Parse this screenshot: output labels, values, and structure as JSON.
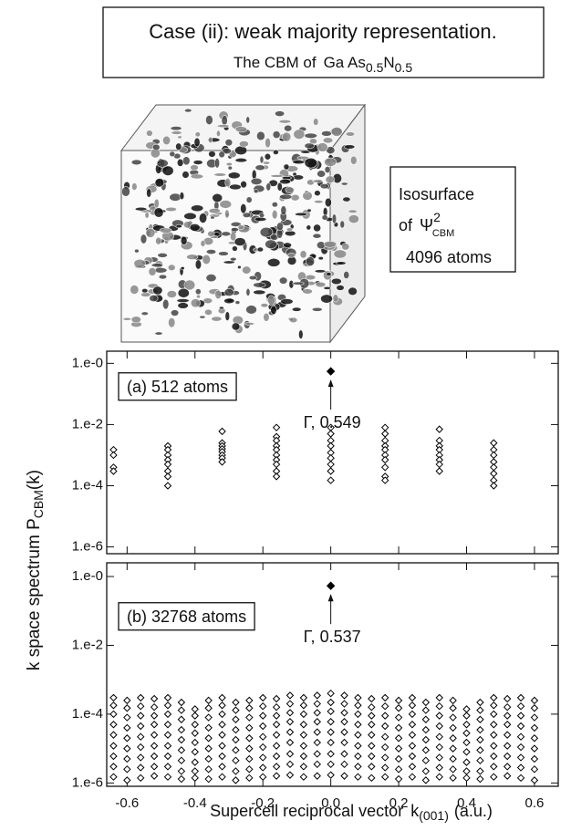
{
  "header": {
    "title": "Case (ii): weak majority representation.",
    "subtitle": [
      "The CBM of",
      "Ga As",
      "0.5",
      "N",
      "0.5"
    ]
  },
  "inset": {
    "line1": "Isosurface",
    "line2": [
      "of",
      "Ψ",
      "2",
      "CBM"
    ],
    "line3": "4096 atoms"
  },
  "axis_labels": {
    "y": [
      "k space spectrum P",
      "CBM",
      "(k)"
    ],
    "x": [
      "Supercell reciprocal vector",
      "k",
      "(001)",
      "(a.u.)"
    ]
  },
  "chart_data": [
    {
      "type": "scatter",
      "label": "(a) 512 atoms",
      "yscale": "log",
      "marker": "open-diamond",
      "color": "#000000",
      "xlim": [
        -0.66,
        0.67
      ],
      "xticks": [
        -0.6,
        -0.4,
        -0.2,
        0,
        0.2,
        0.4,
        0.6
      ],
      "ylim": [
        6e-07,
        2.5
      ],
      "yticks": [
        {
          "value": 1,
          "label": "1.e-0"
        },
        {
          "value": 0.01,
          "label": "1.e-2"
        },
        {
          "value": 0.0001,
          "label": "1.e-4"
        },
        {
          "value": 1e-06,
          "label": "1.e-6"
        }
      ],
      "x": [
        -0.64,
        -0.48,
        -0.32,
        -0.16,
        0,
        0.16,
        0.32,
        0.48
      ],
      "values": [
        [
          0.0015,
          0.001,
          0.0004,
          0.0003
        ],
        [
          0.002,
          0.0015,
          0.001,
          0.0007,
          0.0005,
          0.0003,
          0.0002,
          0.0001
        ],
        [
          0.006,
          0.0025,
          0.002,
          0.0016,
          0.0013,
          0.001,
          0.0008,
          0.0006
        ],
        [
          0.008,
          0.004,
          0.003,
          0.002,
          0.0015,
          0.001,
          0.0007,
          0.0005,
          0.0003,
          0.0002
        ],
        [
          0.008,
          0.005,
          0.003,
          0.002,
          0.0012,
          0.0008,
          0.0005,
          0.0003,
          0.00015
        ],
        [
          0.008,
          0.005,
          0.003,
          0.002,
          0.0015,
          0.001,
          0.0007,
          0.0004,
          0.0002,
          0.00015
        ],
        [
          0.007,
          0.003,
          0.002,
          0.0015,
          0.001,
          0.0007,
          0.0005,
          0.0003
        ],
        [
          0.0025,
          0.0015,
          0.001,
          0.0006,
          0.0004,
          0.00025,
          0.00015,
          0.0001
        ]
      ],
      "gamma": {
        "x": 0,
        "value": 0.549,
        "label": "Γ, 0.549"
      }
    },
    {
      "type": "scatter",
      "label": "(b) 32768 atoms",
      "yscale": "log",
      "marker": "open-diamond",
      "color": "#000000",
      "xlim": [
        -0.66,
        0.67
      ],
      "xticks": [
        -0.6,
        -0.4,
        -0.2,
        {
          "value": 0,
          "label": "0.0"
        },
        0.2,
        0.4,
        0.6
      ],
      "ylim": [
        8e-07,
        2.5
      ],
      "yticks": [
        {
          "value": 1,
          "label": "1.e-0"
        },
        {
          "value": 0.01,
          "label": "1.e-2"
        },
        {
          "value": 0.0001,
          "label": "1.e-4"
        },
        {
          "value": 1e-06,
          "label": "1.e-6"
        }
      ],
      "x": [
        -0.64,
        -0.6,
        -0.56,
        -0.52,
        -0.48,
        -0.44,
        -0.4,
        -0.36,
        -0.32,
        -0.28,
        -0.24,
        -0.2,
        -0.16,
        -0.12,
        -0.08,
        -0.04,
        0,
        0.04,
        0.08,
        0.12,
        0.16,
        0.2,
        0.24,
        0.28,
        0.32,
        0.36,
        0.4,
        0.44,
        0.48,
        0.52,
        0.56,
        0.6
      ],
      "values": [
        [
          0.0003,
          0.00018,
          0.0001,
          5e-05,
          2.5e-05,
          1.2e-05,
          6e-06,
          3e-06,
          1.5e-06
        ],
        [
          0.00025,
          0.00015,
          8e-05,
          4e-05,
          2e-05,
          1e-05,
          5e-06,
          2.5e-06,
          1.2e-06
        ],
        [
          0.0003,
          0.00017,
          9e-05,
          4.5e-05,
          2.2e-05,
          1.1e-05,
          5.5e-06,
          2.8e-06,
          1.4e-06
        ],
        [
          0.00028,
          0.00016,
          9e-05,
          5e-05,
          2.5e-05,
          1.2e-05,
          6e-06,
          3e-06,
          1.6e-06
        ],
        [
          0.0003,
          0.00018,
          0.0001,
          5e-05,
          2.5e-05,
          1.2e-05,
          6e-06,
          3e-06,
          1.5e-06
        ],
        [
          0.00022,
          0.00013,
          7e-05,
          3.5e-05,
          1.8e-05,
          9e-06,
          4.5e-06,
          2.2e-06,
          1.3e-06
        ],
        [
          0.00014,
          9e-05,
          5e-05,
          2.8e-05,
          1.5e-05,
          8e-06,
          4e-06,
          2.2e-06,
          1.4e-06
        ],
        [
          0.00025,
          0.00015,
          8e-05,
          4e-05,
          2e-05,
          1e-05,
          5e-06,
          2.5e-06,
          1.3e-06
        ],
        [
          0.0003,
          0.00018,
          0.0001,
          5e-05,
          2.5e-05,
          1.2e-05,
          6e-06,
          3e-06,
          1.5e-06
        ],
        [
          0.00022,
          0.00013,
          7e-05,
          3.5e-05,
          1.8e-05,
          9e-06,
          4.5e-06,
          2.2e-06,
          1.2e-06
        ],
        [
          0.00025,
          0.00015,
          8e-05,
          4e-05,
          2e-05,
          1e-05,
          5e-06,
          2.5e-06,
          1.4e-06
        ],
        [
          0.0003,
          0.00017,
          9e-05,
          4.5e-05,
          2.2e-05,
          1.1e-05,
          5.5e-06,
          2.8e-06,
          1.5e-06
        ],
        [
          0.00028,
          0.00016,
          9e-05,
          5e-05,
          2.5e-05,
          1.2e-05,
          6e-06,
          3e-06,
          1.6e-06
        ],
        [
          0.00035,
          0.0002,
          0.00011,
          6e-05,
          3e-05,
          1.5e-05,
          7e-06,
          3.5e-06,
          1.7e-06
        ],
        [
          0.0003,
          0.00018,
          0.0001,
          5e-05,
          2.5e-05,
          1.2e-05,
          6e-06,
          3e-06,
          1.5e-06
        ],
        [
          0.00035,
          0.0002,
          0.00011,
          6e-05,
          3e-05,
          1.5e-05,
          7e-06,
          3.5e-06,
          1.6e-06
        ],
        [
          0.0004,
          0.00022,
          0.00012,
          6e-05,
          3e-05,
          1.5e-05,
          7e-06,
          3.5e-06,
          1.7e-06
        ],
        [
          0.00035,
          0.0002,
          0.00011,
          6e-05,
          3e-05,
          1.5e-05,
          7e-06,
          3.5e-06,
          1.6e-06
        ],
        [
          0.0003,
          0.00018,
          0.0001,
          5e-05,
          2.5e-05,
          1.2e-05,
          6e-06,
          3e-06,
          1.5e-06
        ],
        [
          0.00028,
          0.00016,
          9e-05,
          5e-05,
          2.5e-05,
          1.2e-05,
          6e-06,
          3e-06,
          1.4e-06
        ],
        [
          0.0003,
          0.00017,
          9e-05,
          4.5e-05,
          2.2e-05,
          1.1e-05,
          5.5e-06,
          2.8e-06,
          1.5e-06
        ],
        [
          0.00025,
          0.00015,
          8e-05,
          4e-05,
          2e-05,
          1e-05,
          5e-06,
          2.5e-06,
          1.3e-06
        ],
        [
          0.0003,
          0.00018,
          0.0001,
          5e-05,
          2.5e-05,
          1.2e-05,
          6e-06,
          3e-06,
          1.5e-06
        ],
        [
          0.00022,
          0.00013,
          7e-05,
          3.5e-05,
          1.8e-05,
          9e-06,
          4.5e-06,
          2.2e-06,
          1.2e-06
        ],
        [
          0.0003,
          0.00017,
          9e-05,
          4.5e-05,
          2.2e-05,
          1.1e-05,
          5.5e-06,
          2.8e-06,
          1.5e-06
        ],
        [
          0.00025,
          0.00015,
          8e-05,
          4e-05,
          2e-05,
          1e-05,
          5e-06,
          2.5e-06,
          1.4e-06
        ],
        [
          0.00014,
          9e-05,
          5e-05,
          2.8e-05,
          1.5e-05,
          8e-06,
          4e-06,
          2.2e-06,
          1.4e-06
        ],
        [
          0.00022,
          0.00013,
          7e-05,
          3.5e-05,
          1.8e-05,
          9e-06,
          4.5e-06,
          2.2e-06,
          1.3e-06
        ],
        [
          0.0003,
          0.00018,
          0.0001,
          5e-05,
          2.5e-05,
          1.2e-05,
          6e-06,
          3e-06,
          1.5e-06
        ],
        [
          0.00028,
          0.00016,
          9e-05,
          5e-05,
          2.5e-05,
          1.2e-05,
          6e-06,
          3e-06,
          1.6e-06
        ],
        [
          0.0003,
          0.00017,
          9e-05,
          4.5e-05,
          2.2e-05,
          1.1e-05,
          5.5e-06,
          2.8e-06,
          1.4e-06
        ],
        [
          0.00025,
          0.00015,
          8e-05,
          4e-05,
          2e-05,
          1e-05,
          5e-06,
          2.5e-06,
          1.2e-06
        ]
      ],
      "gamma": {
        "x": 0,
        "value": 0.537,
        "label": "Γ, 0.537"
      }
    }
  ]
}
